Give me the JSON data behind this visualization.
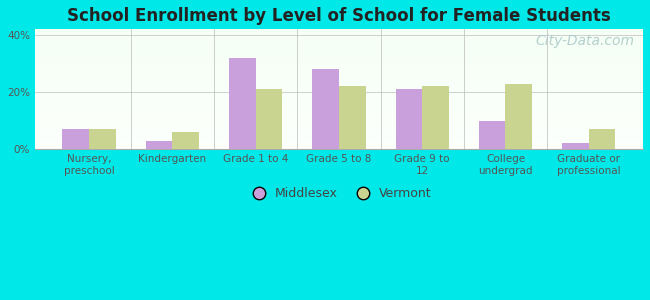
{
  "title": "School Enrollment by Level of School for Female Students",
  "categories": [
    "Nursery,\npreschool",
    "Kindergarten",
    "Grade 1 to 4",
    "Grade 5 to 8",
    "Grade 9 to\n12",
    "College\nundergrad",
    "Graduate or\nprofessional"
  ],
  "middlesex": [
    7,
    3,
    32,
    28,
    21,
    10,
    2
  ],
  "vermont": [
    7,
    6,
    21,
    22,
    22,
    23,
    7
  ],
  "middlesex_color": "#c9a0dc",
  "vermont_color": "#c8d490",
  "background_outer": "#00e8e8",
  "ylim": [
    0,
    42
  ],
  "yticks": [
    0,
    20,
    40
  ],
  "ytick_labels": [
    "0%",
    "20%",
    "40%"
  ],
  "bar_width": 0.32,
  "title_fontsize": 12,
  "tick_fontsize": 7.5,
  "legend_fontsize": 9,
  "watermark_text": "City-Data.com",
  "watermark_color": "#aac8c8",
  "watermark_fontsize": 10
}
